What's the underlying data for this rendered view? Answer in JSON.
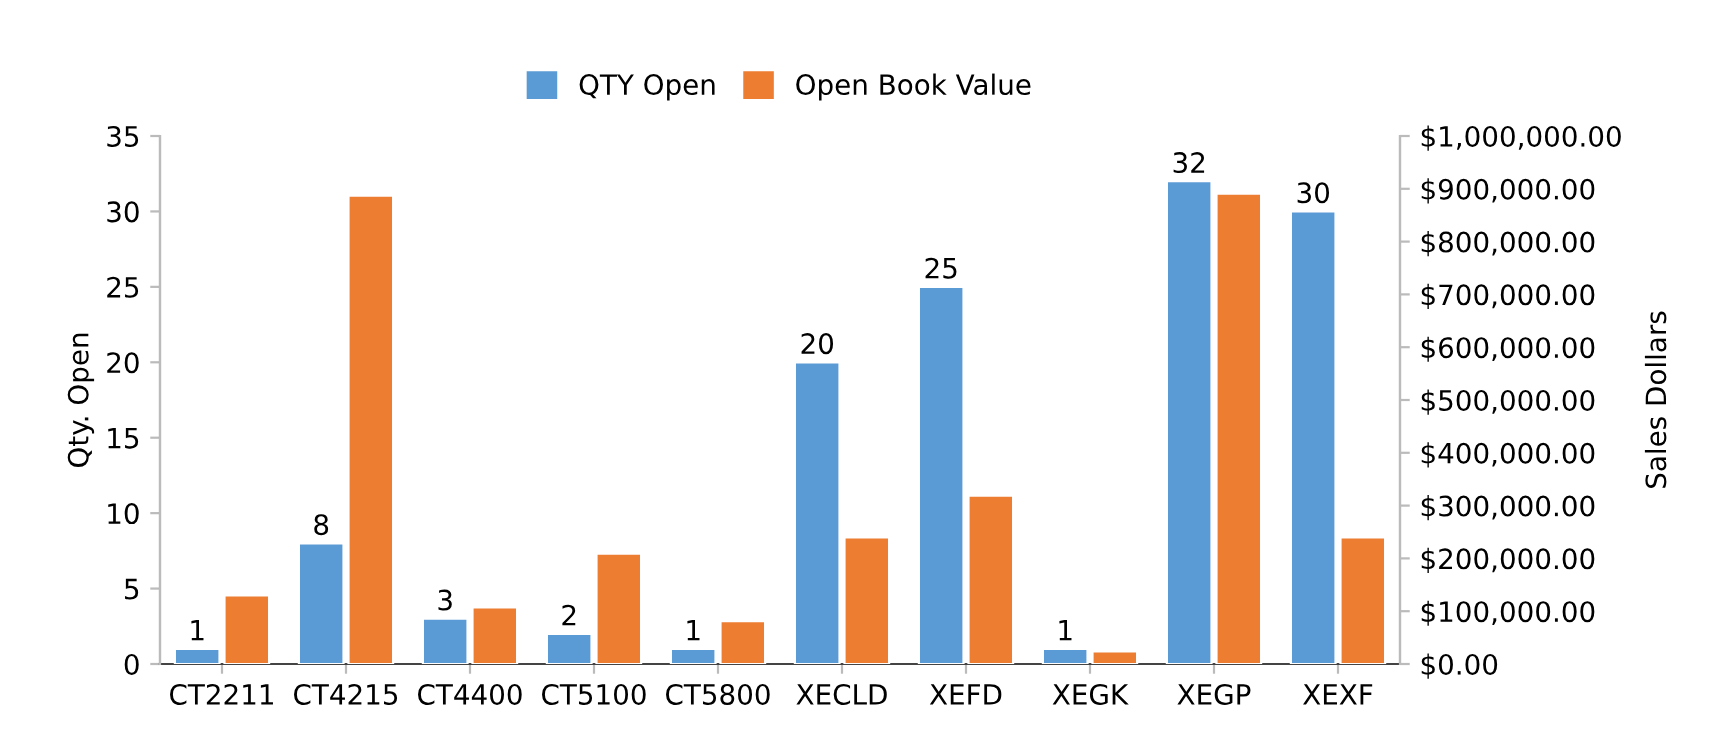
{
  "chart_data": {
    "type": "bar",
    "categories": [
      "CT2211",
      "CT4215",
      "CT4400",
      "CT5100",
      "CT5800",
      "XECLD",
      "XEFD",
      "XEGK",
      "XEGP",
      "XEXF"
    ],
    "series": [
      {
        "name": "QTY Open",
        "color": "#5b9bd5",
        "values": [
          1,
          8,
          3,
          2,
          1,
          20,
          25,
          1,
          32,
          30
        ],
        "value_labels": [
          "1",
          "8",
          "3",
          "2",
          "1",
          "20",
          "25",
          "1",
          "32",
          "30"
        ]
      },
      {
        "name": "Open Book Value",
        "color": "#ed7d31",
        "axis": "y2",
        "values": [
          130000,
          887000,
          107000,
          209000,
          81000,
          240000,
          319000,
          24000,
          891000,
          240000
        ]
      }
    ],
    "ylabel": "Qty. Open",
    "y2label": "Sales Dollars",
    "ylim": [
      0,
      35
    ],
    "yticks": [
      0,
      5,
      10,
      15,
      20,
      25,
      30,
      35
    ],
    "y2lim": [
      0,
      1000000
    ],
    "y2ticks": [
      {
        "value": 0,
        "label": "$0.00"
      },
      {
        "value": 100000,
        "label": "$100,000.00"
      },
      {
        "value": 200000,
        "label": "$200,000.00"
      },
      {
        "value": 300000,
        "label": "$300,000.00"
      },
      {
        "value": 400000,
        "label": "$400,000.00"
      },
      {
        "value": 500000,
        "label": "$500,000.00"
      },
      {
        "value": 600000,
        "label": "$600,000.00"
      },
      {
        "value": 700000,
        "label": "$700,000.00"
      },
      {
        "value": 800000,
        "label": "$800,000.00"
      },
      {
        "value": 900000,
        "label": "$900,000.00"
      },
      {
        "value": 1000000,
        "label": "$1,000,000.00"
      }
    ],
    "legend": "top",
    "grid": false
  }
}
